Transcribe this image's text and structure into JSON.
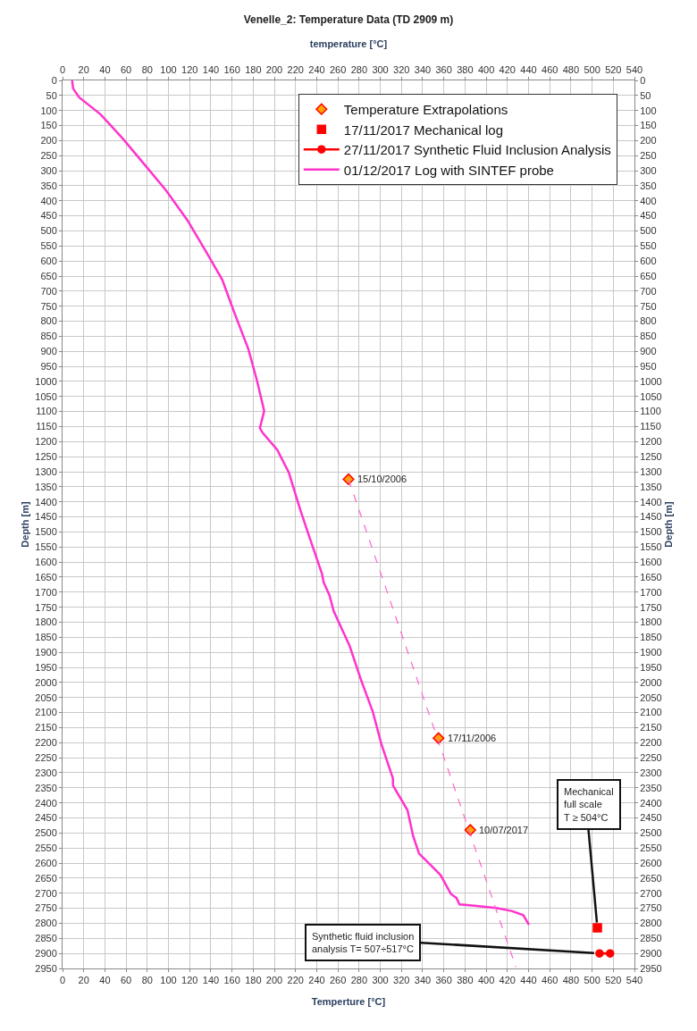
{
  "chart_data": {
    "type": "line",
    "title": "Venelle_2: Temperature Data (TD 2909 m)",
    "xlabel": "Temperture [°C]",
    "x2label": "temperature [°C]",
    "ylabel": "Depth [m]",
    "y2label": "Depth [m]",
    "xlim": [
      0,
      540
    ],
    "xticks": [
      0,
      20,
      40,
      60,
      80,
      100,
      120,
      140,
      160,
      180,
      200,
      220,
      240,
      260,
      280,
      300,
      320,
      340,
      360,
      380,
      400,
      420,
      440,
      460,
      480,
      500,
      520,
      540
    ],
    "x2lim": [
      0,
      540
    ],
    "x2ticks": [
      0,
      20,
      40,
      60,
      80,
      100,
      120,
      140,
      160,
      180,
      200,
      220,
      240,
      260,
      280,
      300,
      320,
      340,
      360,
      380,
      400,
      420,
      440,
      460,
      480,
      500,
      520,
      540
    ],
    "ylim": [
      2950,
      0
    ],
    "yticks": [
      0,
      50,
      100,
      150,
      200,
      250,
      300,
      350,
      400,
      450,
      500,
      550,
      600,
      650,
      700,
      750,
      800,
      850,
      900,
      950,
      1000,
      1050,
      1100,
      1150,
      1200,
      1250,
      1300,
      1350,
      1400,
      1450,
      1500,
      1550,
      1600,
      1650,
      1700,
      1750,
      1800,
      1850,
      1900,
      1950,
      2000,
      2050,
      2100,
      2150,
      2200,
      2250,
      2300,
      2350,
      2400,
      2450,
      2500,
      2550,
      2600,
      2650,
      2700,
      2750,
      2800,
      2850,
      2900,
      2950
    ],
    "y2lim": [
      2950,
      0
    ],
    "y2ticks": [
      0,
      50,
      100,
      150,
      200,
      250,
      300,
      350,
      400,
      450,
      500,
      550,
      600,
      650,
      700,
      750,
      800,
      850,
      900,
      950,
      1000,
      1050,
      1100,
      1150,
      1200,
      1250,
      1300,
      1350,
      1400,
      1450,
      1500,
      1550,
      1600,
      1650,
      1700,
      1750,
      1800,
      1850,
      1900,
      1950,
      2000,
      2050,
      2100,
      2150,
      2200,
      2250,
      2300,
      2350,
      2400,
      2450,
      2500,
      2550,
      2600,
      2650,
      2700,
      2750,
      2800,
      2850,
      2900,
      2950
    ],
    "grid": true,
    "legend": "top right",
    "series": [
      {
        "name": "Temperature Extrapolations",
        "type": "scatter",
        "marker": "diamond",
        "color": "#ffa500",
        "x": [
          270,
          355,
          385
        ],
        "values": [
          1325,
          2185,
          2490
        ]
      },
      {
        "name": "17/11/2017 Mechanical log",
        "type": "scatter",
        "marker": "square",
        "color": "#ff0000",
        "x": [
          505
        ],
        "values": [
          2815
        ]
      },
      {
        "name": "27/11/2017 Synthetic Fluid Inclusion Analysis",
        "type": "line",
        "marker": "circle",
        "color": "#ff0000",
        "x": [
          507,
          517
        ],
        "values": [
          2900,
          2900
        ]
      },
      {
        "name": "01/12/2017 Log with SINTEF probe",
        "marker": "none",
        "color": "#ff33cc",
        "x": [
          9,
          10,
          15.6,
          36,
          56.5,
          77,
          97.5,
          118,
          134,
          150.8,
          161.7,
          175.4,
          183.6,
          190.4,
          186.3,
          189,
          202.7,
          213.7,
          224.6,
          232.8,
          245,
          246.5,
          252,
          256,
          271,
          282,
          293,
          301,
          312,
          312,
          325.7,
          331,
          336.6,
          347.5,
          357,
          366.6,
          372,
          374.8,
          391,
          410.4,
          424,
          435,
          440.4
        ],
        "values": [
          0,
          27,
          56,
          113,
          192,
          278,
          364,
          465,
          560,
          662,
          767,
          892,
          997,
          1098,
          1155,
          1171,
          1227,
          1303,
          1428,
          1514,
          1639,
          1667,
          1710,
          1763,
          1878,
          1993,
          2098,
          2204,
          2319,
          2342,
          2424,
          2510,
          2568,
          2606,
          2640,
          2702,
          2716,
          2737,
          2742,
          2750,
          2759,
          2773,
          2805
        ]
      },
      {
        "marker": "none",
        "line_style": "dashed",
        "color": "#ff66cc",
        "x": [
          270,
          428
        ],
        "values": [
          1325,
          2945
        ]
      }
    ],
    "annotations": [
      {
        "text": "15/10/2006",
        "x": 270,
        "y": 1325
      },
      {
        "text": "17/11/2006",
        "x": 355,
        "y": 2185
      },
      {
        "text": "10/07/2017",
        "x": 385,
        "y": 2490
      },
      {
        "text": "Mechanical\nfull scale\nT ≥ 504°C",
        "x": 505,
        "y": 2815
      },
      {
        "text": "Synthetic fluid inclusion\nanalysis T= 507÷517°C",
        "x": 507,
        "y": 2900
      }
    ]
  }
}
